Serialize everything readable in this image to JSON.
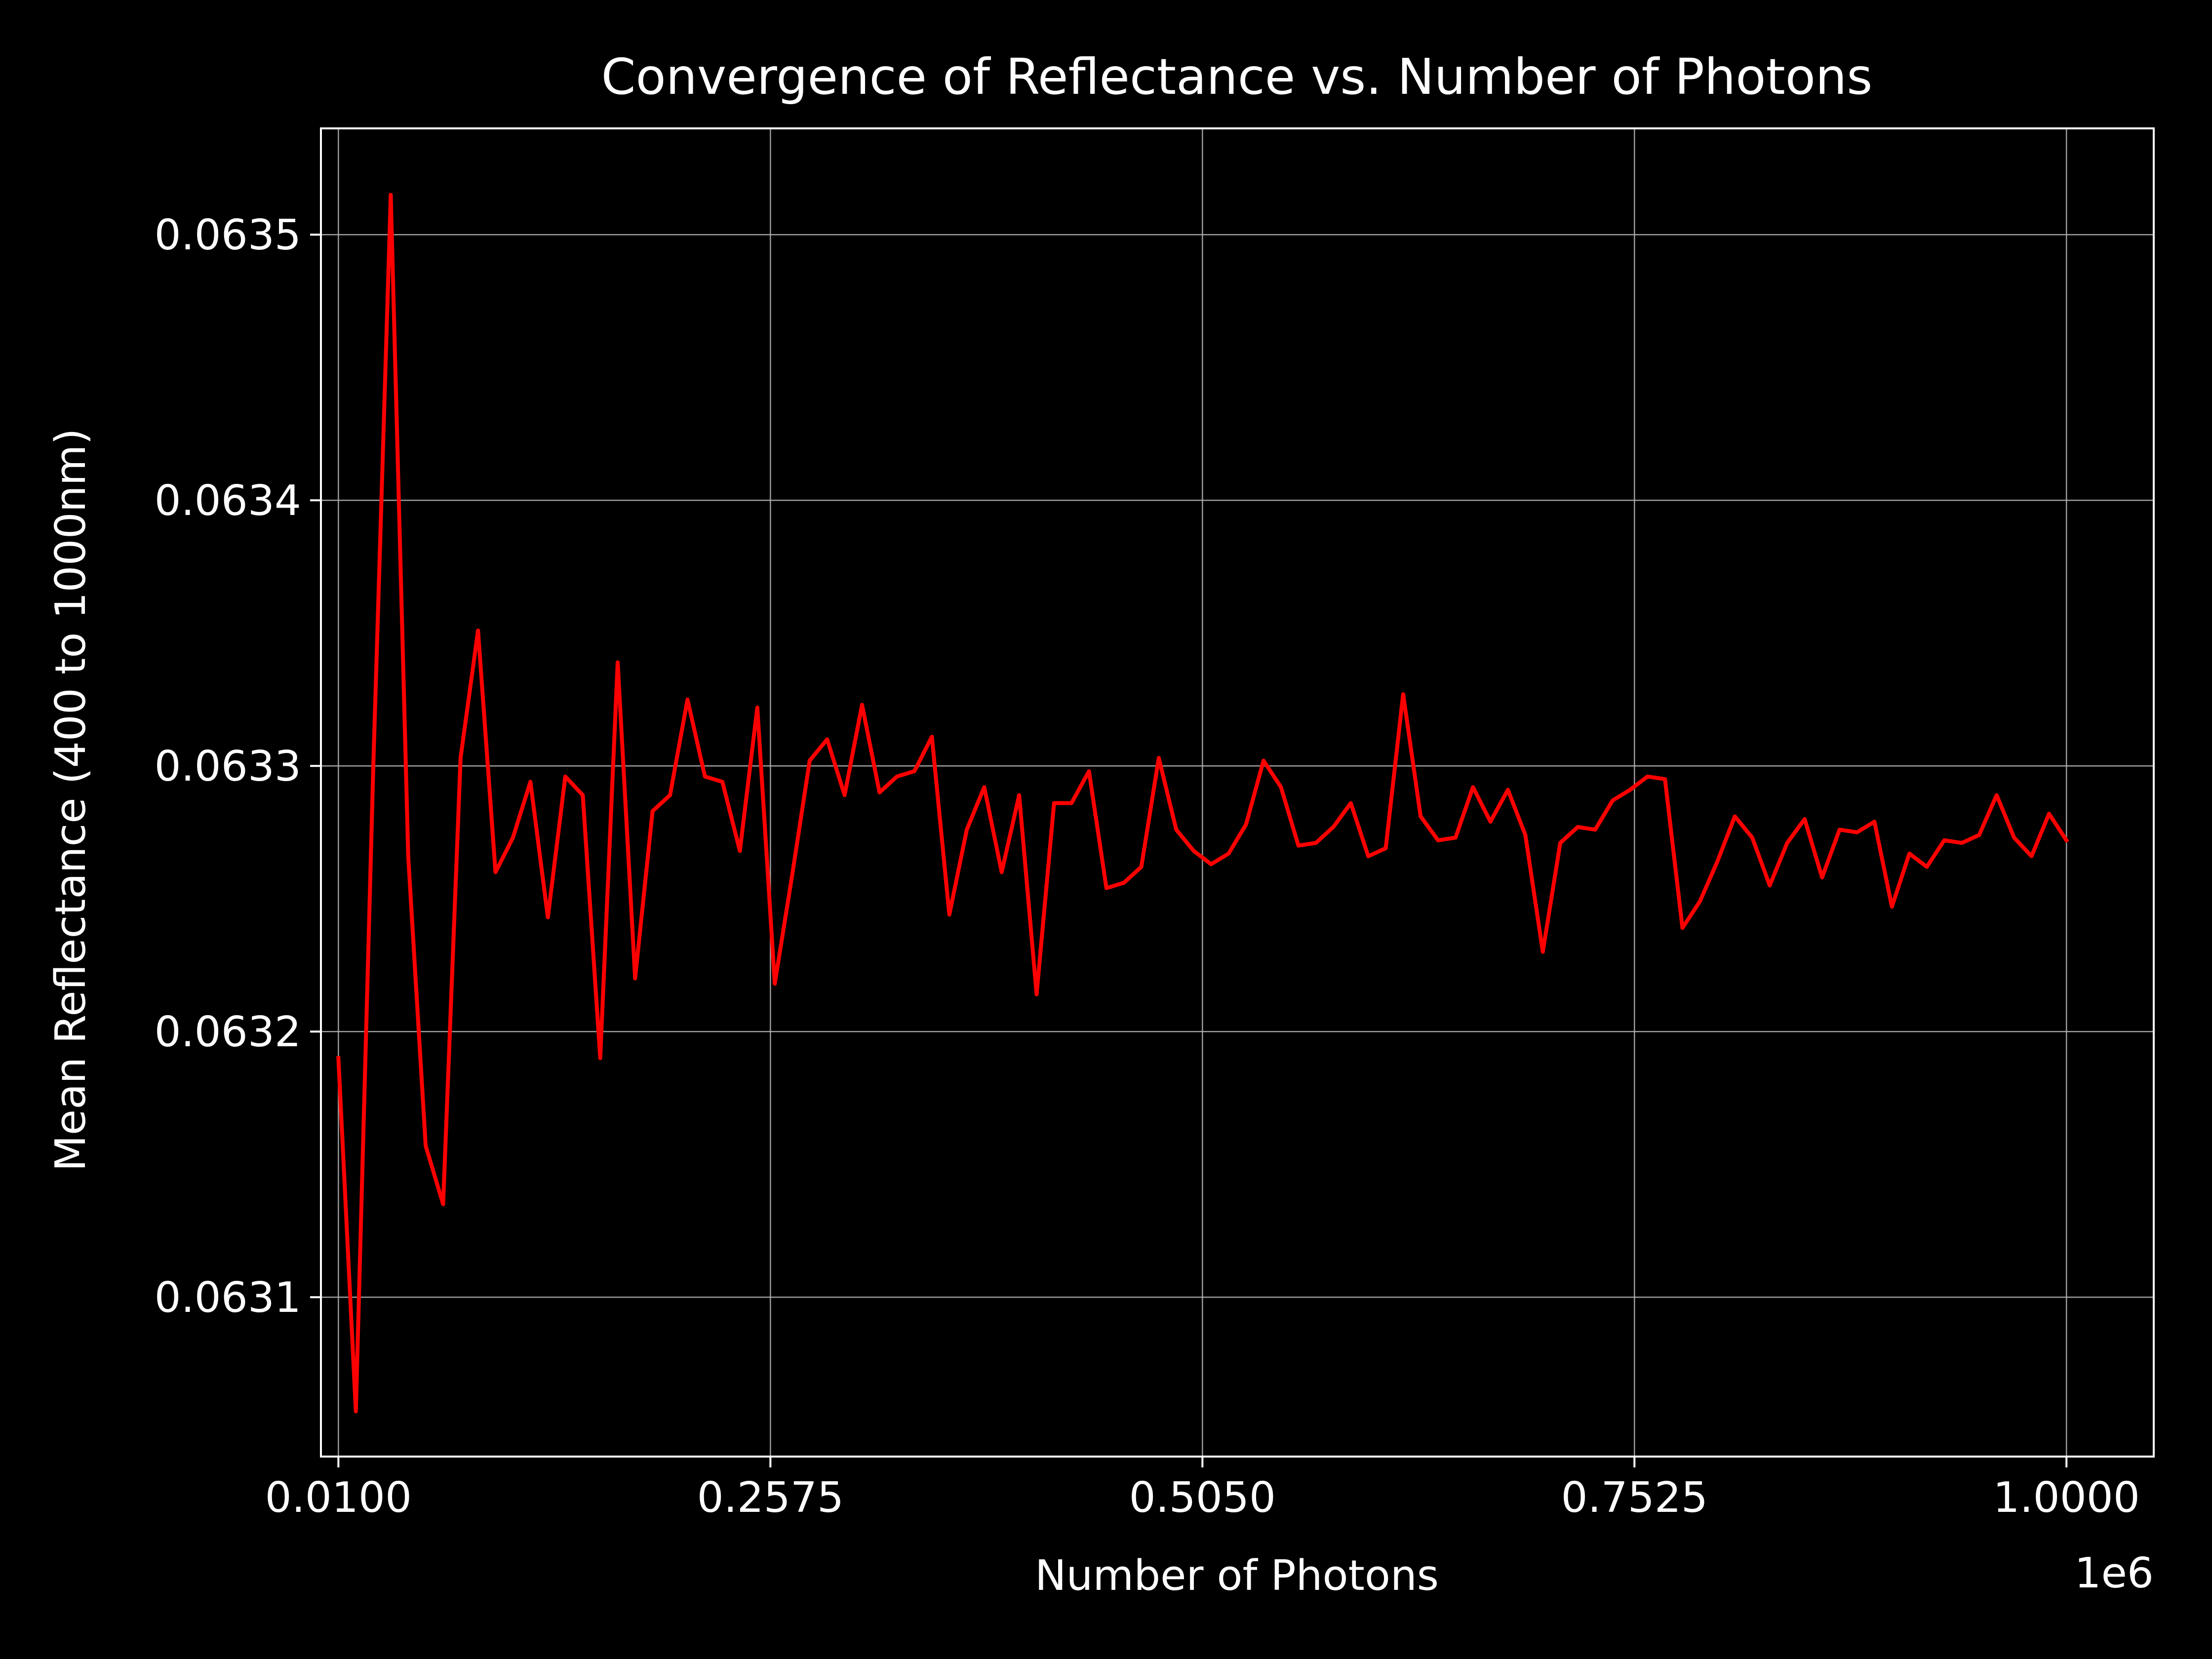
{
  "chart_data": {
    "type": "line",
    "title": "Convergence of Reflectance vs. Number of Photons",
    "xlabel": "Number of Photons",
    "ylabel": "Mean Reflectance (400 to 1000nm)",
    "x_offset_label": "1e6",
    "xlim": [
      0.0,
      1.05
    ],
    "ylim": [
      0.06304,
      0.06354
    ],
    "x_ticks": [
      0.01,
      0.2575,
      0.505,
      0.7525,
      1.0
    ],
    "x_tick_labels": [
      "0.0100",
      "0.2575",
      "0.5050",
      "0.7525",
      "1.0000"
    ],
    "y_ticks": [
      0.0631,
      0.0632,
      0.0633,
      0.0634,
      0.0635
    ],
    "y_tick_labels": [
      "0.0631",
      "0.0632",
      "0.0633",
      "0.0634",
      "0.0635"
    ],
    "grid": true,
    "series": [
      {
        "color": "#ff0000",
        "x": [
          0.01,
          0.02,
          0.03,
          0.04,
          0.05,
          0.06,
          0.07,
          0.08,
          0.09,
          0.1,
          0.11,
          0.12,
          0.13,
          0.14,
          0.15,
          0.16,
          0.17,
          0.18,
          0.19,
          0.2,
          0.21,
          0.22,
          0.23,
          0.24,
          0.25,
          0.26,
          0.27,
          0.28,
          0.29,
          0.3,
          0.31,
          0.32,
          0.33,
          0.34,
          0.35,
          0.36,
          0.37,
          0.38,
          0.39,
          0.4,
          0.41,
          0.42,
          0.43,
          0.44,
          0.45,
          0.46,
          0.47,
          0.48,
          0.49,
          0.5,
          0.51,
          0.52,
          0.53,
          0.54,
          0.55,
          0.56,
          0.57,
          0.58,
          0.59,
          0.6,
          0.61,
          0.62,
          0.63,
          0.64,
          0.65,
          0.66,
          0.67,
          0.68,
          0.69,
          0.7,
          0.71,
          0.72,
          0.73,
          0.74,
          0.75,
          0.76,
          0.77,
          0.78,
          0.79,
          0.8,
          0.81,
          0.82,
          0.83,
          0.84,
          0.85,
          0.86,
          0.87,
          0.88,
          0.89,
          0.9,
          0.91,
          0.92,
          0.93,
          0.94,
          0.95,
          0.96,
          0.97,
          0.98,
          0.99,
          1.0
        ],
        "y": [
          0.06319,
          0.063057,
          0.0633,
          0.063515,
          0.063266,
          0.063157,
          0.063135,
          0.063303,
          0.063351,
          0.06326,
          0.063273,
          0.063294,
          0.063243,
          0.063296,
          0.063289,
          0.06319,
          0.063339,
          0.06322,
          0.063283,
          0.063289,
          0.063325,
          0.063296,
          0.063294,
          0.063268,
          0.063322,
          0.063218,
          0.063259,
          0.063302,
          0.06331,
          0.063289,
          0.063323,
          0.06329,
          0.063296,
          0.063298,
          0.063311,
          0.063244,
          0.063276,
          0.063292,
          0.06326,
          0.063289,
          0.063214,
          0.063286,
          0.063286,
          0.063298,
          0.063254,
          0.063256,
          0.063262,
          0.063303,
          0.063276,
          0.063268,
          0.063263,
          0.063267,
          0.063278,
          0.063302,
          0.063292,
          0.06327,
          0.063271,
          0.063277,
          0.063286,
          0.063266,
          0.063269,
          0.063327,
          0.063281,
          0.063272,
          0.063273,
          0.063292,
          0.063279,
          0.063291,
          0.063274,
          0.06323,
          0.063271,
          0.063277,
          0.063276,
          0.063287,
          0.063291,
          0.063296,
          0.063295,
          0.063239,
          0.063249,
          0.063264,
          0.063281,
          0.063273,
          0.063255,
          0.063271,
          0.06328,
          0.063258,
          0.063276,
          0.063275,
          0.063279,
          0.063247,
          0.063267,
          0.063262,
          0.063272,
          0.063271,
          0.063274,
          0.063289,
          0.063273,
          0.063266,
          0.063282,
          0.063272
        ]
      }
    ]
  }
}
